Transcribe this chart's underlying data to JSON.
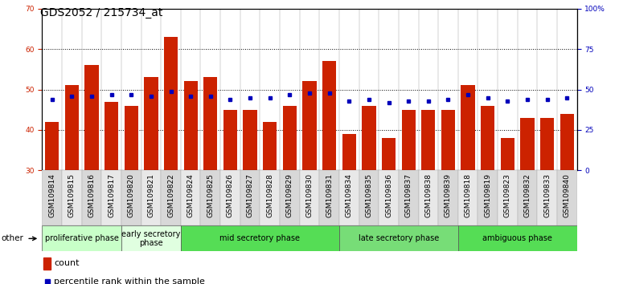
{
  "title": "GDS2052 / 215734_at",
  "samples": [
    "GSM109814",
    "GSM109815",
    "GSM109816",
    "GSM109817",
    "GSM109820",
    "GSM109821",
    "GSM109822",
    "GSM109824",
    "GSM109825",
    "GSM109826",
    "GSM109827",
    "GSM109828",
    "GSM109829",
    "GSM109830",
    "GSM109831",
    "GSM109834",
    "GSM109835",
    "GSM109836",
    "GSM109837",
    "GSM109838",
    "GSM109839",
    "GSM109818",
    "GSM109819",
    "GSM109823",
    "GSM109832",
    "GSM109833",
    "GSM109840"
  ],
  "count_values": [
    42,
    51,
    56,
    47,
    46,
    53,
    63,
    52,
    53,
    45,
    45,
    42,
    46,
    52,
    57,
    39,
    46,
    38,
    45,
    45,
    45,
    51,
    46,
    38,
    43,
    43,
    44
  ],
  "percentile_values": [
    44,
    46,
    46,
    47,
    47,
    46,
    49,
    46,
    46,
    44,
    45,
    45,
    47,
    48,
    48,
    43,
    44,
    42,
    43,
    43,
    44,
    47,
    45,
    43,
    44,
    44,
    45
  ],
  "phases": [
    {
      "name": "proliferative phase",
      "start": 0,
      "end": 4,
      "color": "#c8ffc8"
    },
    {
      "name": "early secretory\nphase",
      "start": 4,
      "end": 7,
      "color": "#e0ffe0"
    },
    {
      "name": "mid secretory phase",
      "start": 7,
      "end": 15,
      "color": "#55dd55"
    },
    {
      "name": "late secretory phase",
      "start": 15,
      "end": 21,
      "color": "#77dd77"
    },
    {
      "name": "ambiguous phase",
      "start": 21,
      "end": 27,
      "color": "#55dd55"
    }
  ],
  "ylim_left": [
    30,
    70
  ],
  "ylim_right": [
    0,
    100
  ],
  "yticks_left": [
    30,
    40,
    50,
    60,
    70
  ],
  "yticks_right": [
    0,
    25,
    50,
    75,
    100
  ],
  "bar_color": "#cc2200",
  "dot_color": "#0000bb",
  "background_color": "#ffffff",
  "grid_color": "#000000",
  "title_fontsize": 10,
  "tick_fontsize": 6.5,
  "phase_label_fontsize": 7,
  "legend_fontsize": 8
}
